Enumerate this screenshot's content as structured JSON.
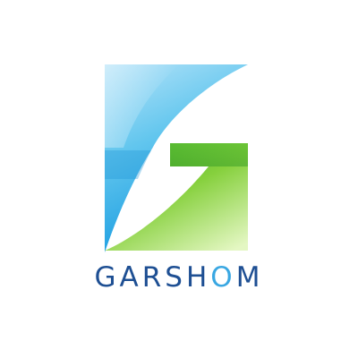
{
  "brand": {
    "name": "GARSHOM",
    "wordmark_parts": {
      "pre": "GARSH",
      "accent": "O",
      "post": "M"
    }
  },
  "colors": {
    "wordmark": "#1e4f93",
    "accent_letter": "#39a7e2",
    "blue_light": "#aee0f8",
    "blue_mid": "#5cc4ee",
    "blue_deep": "#1e9fe0",
    "green_light": "#d6f2a8",
    "green_mid": "#8fd43e",
    "green_deep": "#3ea82a",
    "background": "#ffffff"
  }
}
